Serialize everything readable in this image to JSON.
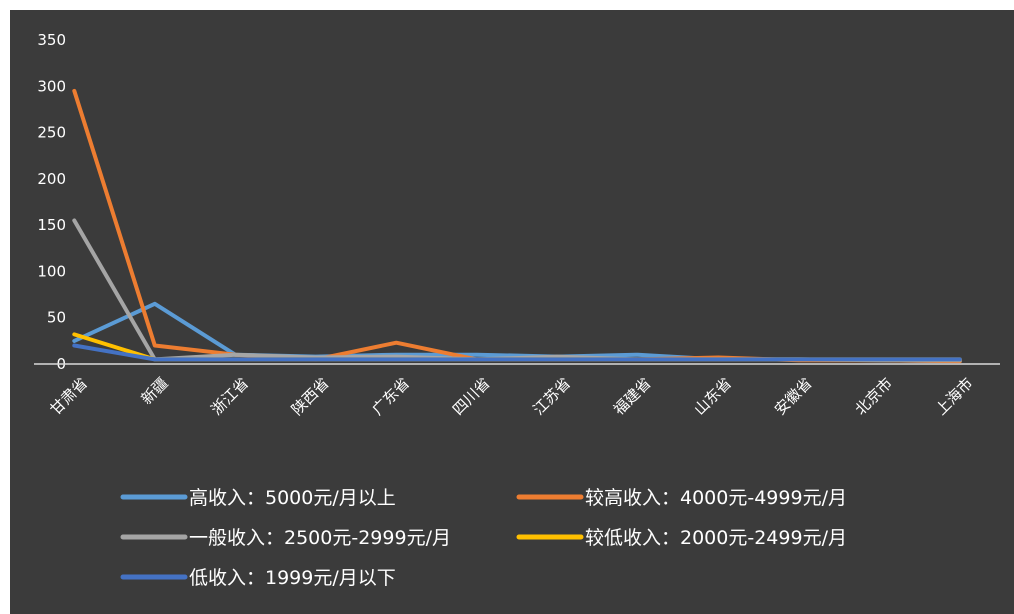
{
  "chart_data": {
    "type": "line",
    "title": "",
    "xlabel": "",
    "ylabel": "",
    "ylim": [
      0,
      350
    ],
    "yticks": [
      0,
      50,
      100,
      150,
      200,
      250,
      300,
      350
    ],
    "grid": false,
    "legend_position": "bottom",
    "categories": [
      "甘肃省",
      "新疆",
      "浙江省",
      "陕西省",
      "广东省",
      "四川省",
      "江苏省",
      "福建省",
      "山东省",
      "安徽省",
      "北京市",
      "上海市"
    ],
    "series": [
      {
        "name": "高收入：5000元/月以上",
        "color": "#5b9bd5",
        "values": [
          25,
          65,
          10,
          8,
          10,
          10,
          8,
          10,
          5,
          5,
          4,
          3
        ]
      },
      {
        "name": "较高收入：4000元-4999元/月",
        "color": "#ed7d31",
        "values": [
          295,
          20,
          10,
          5,
          23,
          5,
          5,
          5,
          7,
          4,
          4,
          3
        ]
      },
      {
        "name": "一般收入：2500元-2999元/月",
        "color": "#a5a5a5",
        "values": [
          155,
          5,
          10,
          7,
          8,
          5,
          8,
          5,
          5,
          5,
          4,
          4
        ]
      },
      {
        "name": "较低收入：2000元-2499元/月",
        "color": "#ffc000",
        "values": [
          32,
          5,
          5,
          5,
          5,
          5,
          5,
          5,
          5,
          5,
          5,
          5
        ]
      },
      {
        "name": "低收入：1999元/月以下",
        "color": "#4472c4",
        "values": [
          20,
          5,
          5,
          5,
          5,
          5,
          5,
          5,
          5,
          5,
          5,
          5
        ]
      }
    ]
  }
}
